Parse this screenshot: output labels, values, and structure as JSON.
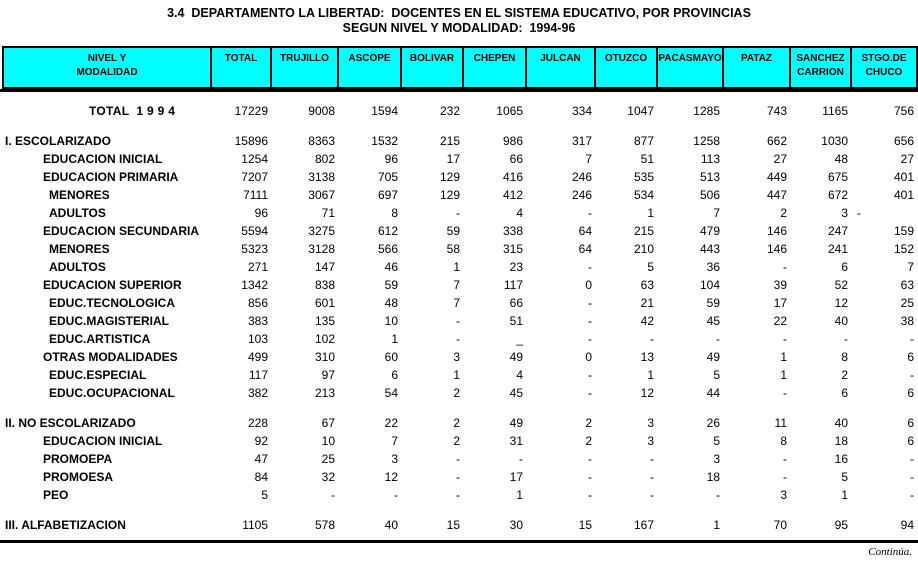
{
  "title": {
    "line1": "3.4  DEPARTAMENTO LA LIBERTAD:  DOCENTES EN EL SISTEMA EDUCATIVO, POR PROVINCIAS",
    "line2": "SEGUN NIVEL Y MODALIDAD:  1994-96"
  },
  "colors": {
    "header_bg": "#00ffff",
    "rule": "#000000",
    "text": "#000000"
  },
  "footer": {
    "note": "Continúa."
  },
  "table": {
    "label_header": [
      "NIVEL Y",
      "MODALIDAD"
    ],
    "columns": [
      [
        "TOTAL"
      ],
      [
        "TRUJILLO"
      ],
      [
        "ASCOPE"
      ],
      [
        "BOLIVAR"
      ],
      [
        "CHEPEN"
      ],
      [
        "JULCAN"
      ],
      [
        "OTUZCO"
      ],
      [
        "PACASMAYO"
      ],
      [
        "PATAZ"
      ],
      [
        "SANCHEZ",
        "CARRION"
      ],
      [
        "STGO.DE",
        "CHUCO"
      ]
    ],
    "rows": [
      {
        "label": "TOTAL  1 9 9 4",
        "style": "total",
        "values": [
          "17229",
          "9008",
          "1594",
          "232",
          "1065",
          "334",
          "1047",
          "1285",
          "743",
          "1165",
          "756"
        ]
      },
      {
        "spacer": true
      },
      {
        "label": "I. ESCOLARIZADO",
        "style": "section",
        "values": [
          "15896",
          "8363",
          "1532",
          "215",
          "986",
          "317",
          "877",
          "1258",
          "662",
          "1030",
          "656"
        ]
      },
      {
        "label": "EDUCACION INICIAL",
        "style": "level1",
        "values": [
          "1254",
          "802",
          "96",
          "17",
          "66",
          "7",
          "51",
          "113",
          "27",
          "48",
          "27"
        ]
      },
      {
        "label": "EDUCACION PRIMARIA",
        "style": "level1",
        "values": [
          "7207",
          "3138",
          "705",
          "129",
          "416",
          "246",
          "535",
          "513",
          "449",
          "675",
          "401"
        ]
      },
      {
        "label": "MENORES",
        "style": "level2",
        "values": [
          "7111",
          "3067",
          "697",
          "129",
          "412",
          "246",
          "534",
          "506",
          "447",
          "672",
          "401"
        ]
      },
      {
        "label": "ADULTOS",
        "style": "level2",
        "values": [
          "96",
          "71",
          "8",
          "-",
          "4",
          "-",
          "1",
          "7",
          "2",
          "3",
          {
            "v": "-",
            "align": "left"
          }
        ]
      },
      {
        "label": "EDUCACION SECUNDARIA",
        "style": "level1",
        "values": [
          "5594",
          "3275",
          "612",
          "59",
          "338",
          "64",
          "215",
          "479",
          "146",
          "247",
          "159"
        ]
      },
      {
        "label": "MENORES",
        "style": "level2",
        "values": [
          "5323",
          "3128",
          "566",
          "58",
          "315",
          "64",
          "210",
          "443",
          "146",
          "241",
          "152"
        ]
      },
      {
        "label": "ADULTOS",
        "style": "level2",
        "values": [
          "271",
          "147",
          "46",
          "1",
          "23",
          "-",
          "5",
          "36",
          "-",
          "6",
          "7"
        ]
      },
      {
        "label": "EDUCACION SUPERIOR",
        "style": "level1",
        "values": [
          "1342",
          "838",
          "59",
          "7",
          "117",
          "0",
          "63",
          "104",
          "39",
          "52",
          "63"
        ]
      },
      {
        "label": "EDUC.TECNOLOGICA",
        "style": "level2",
        "values": [
          "856",
          "601",
          "48",
          "7",
          "66",
          "-",
          "21",
          "59",
          "17",
          "12",
          "25"
        ]
      },
      {
        "label": "EDUC.MAGISTERIAL",
        "style": "level2",
        "values": [
          "383",
          "135",
          "10",
          "-",
          "51",
          "-",
          "42",
          "45",
          "22",
          "40",
          "38"
        ]
      },
      {
        "label": "EDUC.ARTISTICA",
        "style": "level2",
        "values": [
          "103",
          "102",
          "1",
          "-",
          "_",
          "-",
          "-",
          "-",
          "-",
          "-",
          "-"
        ]
      },
      {
        "label": "OTRAS MODALIDADES",
        "style": "level1",
        "values": [
          "499",
          "310",
          "60",
          "3",
          "49",
          "0",
          "13",
          "49",
          "1",
          "8",
          "6"
        ]
      },
      {
        "label": "EDUC.ESPECIAL",
        "style": "level2",
        "values": [
          "117",
          "97",
          "6",
          "1",
          "4",
          "-",
          "1",
          "5",
          "1",
          "2",
          "-"
        ]
      },
      {
        "label": "EDUC.OCUPACIONAL",
        "style": "level2",
        "values": [
          "382",
          "213",
          "54",
          "2",
          "45",
          "-",
          "12",
          "44",
          "-",
          "6",
          "6"
        ]
      },
      {
        "spacer": true
      },
      {
        "label": "II. NO ESCOLARIZADO",
        "style": "section",
        "values": [
          "228",
          "67",
          "22",
          "2",
          "49",
          "2",
          "3",
          "26",
          "11",
          "40",
          "6"
        ]
      },
      {
        "label": "EDUCACION INICIAL",
        "style": "level1",
        "values": [
          "92",
          "10",
          "7",
          "2",
          "31",
          "2",
          "3",
          "5",
          "8",
          "18",
          "6"
        ]
      },
      {
        "label": "PROMOEPA",
        "style": "level1",
        "values": [
          "47",
          "25",
          "3",
          "-",
          "-",
          "-",
          "-",
          "3",
          "-",
          "16",
          "-"
        ]
      },
      {
        "label": "PROMOESA",
        "style": "level1",
        "values": [
          "84",
          "32",
          "12",
          "-",
          "17",
          "-",
          "-",
          "18",
          "-",
          "5",
          "-"
        ]
      },
      {
        "label": "PEO",
        "style": "level1",
        "values": [
          "5",
          "-",
          "-",
          "-",
          "1",
          "-",
          "-",
          "-",
          "3",
          "1",
          "-"
        ]
      },
      {
        "spacer": true
      },
      {
        "label": "III. ALFABETIZACION",
        "style": "section",
        "values": [
          "1105",
          "578",
          "40",
          "15",
          "30",
          "15",
          "167",
          "1",
          "70",
          "95",
          "94"
        ]
      }
    ]
  }
}
